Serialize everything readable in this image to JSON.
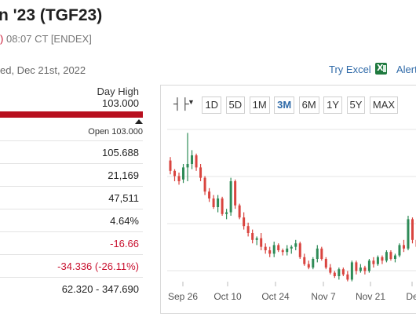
{
  "header": {
    "title": "n '23 (TGF23)",
    "change_fragment": ")",
    "time": "08:07 CT [ENDEX]",
    "date_line": "ed, Dec 21st, 2022",
    "try_excel": "Try Excel",
    "alerts": "Alert"
  },
  "day_range": {
    "label": "Day High",
    "value": "103.000",
    "open_label": "Open 103.000",
    "open_fraction": 0.96
  },
  "stats": [
    {
      "value": "105.688",
      "tone": "normal"
    },
    {
      "value": "21,169",
      "tone": "normal"
    },
    {
      "value": "47,511",
      "tone": "normal"
    },
    {
      "value": "4.64%",
      "tone": "normal"
    },
    {
      "value": "-16.66",
      "tone": "neg"
    },
    {
      "value": "-34.336 (-26.11%)",
      "tone": "neg"
    },
    {
      "value": "62.320 - 347.690",
      "tone": "normal"
    }
  ],
  "chart": {
    "chart_type_icon": "candlestick-icon",
    "ranges": [
      "1D",
      "5D",
      "1M",
      "3M",
      "6M",
      "1Y",
      "5Y",
      "MAX"
    ],
    "active_range": "3M",
    "x_labels": [
      "Sep 26",
      "Oct 10",
      "Oct 24",
      "Nov 7",
      "Nov 21",
      "De"
    ],
    "colors": {
      "up": "#2e8b57",
      "down": "#d9443f",
      "grid": "#e6e6e6"
    }
  },
  "chart_data": {
    "type": "candlestick",
    "x_ticks": [
      "Sep 26",
      "Oct 10",
      "Oct 24",
      "Nov 7",
      "Nov 21",
      "De"
    ],
    "grid": true,
    "ohlc": [
      [
        152,
        154,
        144,
        146
      ],
      [
        146,
        147,
        140,
        143
      ],
      [
        143,
        145,
        138,
        140
      ],
      [
        141,
        150,
        139,
        148
      ],
      [
        148,
        168,
        140,
        150
      ],
      [
        150,
        158,
        147,
        155
      ],
      [
        155,
        156,
        146,
        148
      ],
      [
        148,
        150,
        140,
        142
      ],
      [
        142,
        143,
        132,
        134
      ],
      [
        134,
        136,
        128,
        130
      ],
      [
        130,
        132,
        124,
        125
      ],
      [
        125,
        132,
        122,
        130
      ],
      [
        130,
        131,
        120,
        121
      ],
      [
        121,
        124,
        118,
        122
      ],
      [
        122,
        142,
        120,
        140
      ],
      [
        140,
        141,
        124,
        126
      ],
      [
        126,
        127,
        118,
        119
      ],
      [
        119,
        122,
        112,
        114
      ],
      [
        114,
        116,
        108,
        110
      ],
      [
        110,
        112,
        104,
        106
      ],
      [
        106,
        108,
        103,
        107
      ],
      [
        107,
        110,
        100,
        102
      ],
      [
        102,
        104,
        98,
        100
      ],
      [
        100,
        102,
        96,
        98
      ],
      [
        98,
        105,
        96,
        103
      ],
      [
        103,
        104,
        99,
        100
      ],
      [
        100,
        101,
        97,
        99
      ],
      [
        99,
        103,
        97,
        101
      ],
      [
        101,
        103,
        98,
        102
      ],
      [
        102,
        106,
        100,
        104
      ],
      [
        104,
        105,
        95,
        96
      ],
      [
        96,
        98,
        91,
        92
      ],
      [
        92,
        94,
        89,
        90
      ],
      [
        90,
        96,
        89,
        95
      ],
      [
        95,
        103,
        93,
        101
      ],
      [
        101,
        102,
        94,
        95
      ],
      [
        95,
        96,
        89,
        90
      ],
      [
        90,
        92,
        86,
        87
      ],
      [
        87,
        88,
        84,
        85
      ],
      [
        85,
        90,
        83,
        89
      ],
      [
        89,
        90,
        85,
        86
      ],
      [
        86,
        88,
        82,
        83
      ],
      [
        83,
        94,
        82,
        93
      ],
      [
        93,
        94,
        86,
        88
      ],
      [
        88,
        92,
        87,
        90
      ],
      [
        90,
        91,
        86,
        88
      ],
      [
        88,
        95,
        87,
        94
      ],
      [
        94,
        96,
        90,
        92
      ],
      [
        92,
        97,
        91,
        96
      ],
      [
        96,
        97,
        92,
        94
      ],
      [
        94,
        100,
        93,
        99
      ],
      [
        99,
        100,
        94,
        95
      ],
      [
        95,
        98,
        93,
        97
      ],
      [
        97,
        104,
        96,
        103
      ],
      [
        103,
        106,
        99,
        101
      ],
      [
        101,
        120,
        100,
        118
      ],
      [
        118,
        119,
        104,
        106
      ],
      [
        106,
        108,
        100,
        102
      ]
    ]
  }
}
